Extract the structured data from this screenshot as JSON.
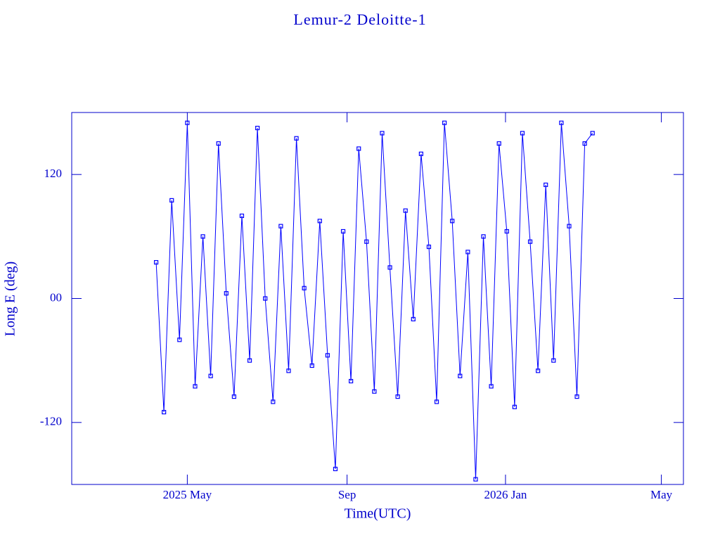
{
  "chart_data": {
    "type": "line",
    "title": "Lemur-2 Deloitte-1",
    "xlabel": "Time(UTC)",
    "ylabel": "Long E (deg)",
    "xlim": [
      "2025-02-01",
      "2026-05-18"
    ],
    "xticks": [
      {
        "value": "2025-05-01",
        "label": "2025 May"
      },
      {
        "value": "2025-09-01",
        "label": "Sep"
      },
      {
        "value": "2026-01-01",
        "label": "2026 Jan"
      },
      {
        "value": "2026-05-01",
        "label": "May"
      }
    ],
    "ylim": [
      -180,
      180
    ],
    "yticks": [
      {
        "value": -120,
        "label": "-120"
      },
      {
        "value": 0,
        "label": "00"
      },
      120
    ],
    "color": "#0000ff",
    "x": [
      "2025-04-07",
      "2025-04-13",
      "2025-04-19",
      "2025-04-25",
      "2025-05-01",
      "2025-05-07",
      "2025-05-13",
      "2025-05-19",
      "2025-05-25",
      "2025-05-31",
      "2025-06-06",
      "2025-06-12",
      "2025-06-18",
      "2025-06-24",
      "2025-06-30",
      "2025-07-06",
      "2025-07-12",
      "2025-07-18",
      "2025-07-24",
      "2025-07-30",
      "2025-08-05",
      "2025-08-11",
      "2025-08-17",
      "2025-08-23",
      "2025-08-29",
      "2025-09-04",
      "2025-09-10",
      "2025-09-16",
      "2025-09-22",
      "2025-09-28",
      "2025-10-04",
      "2025-10-10",
      "2025-10-16",
      "2025-10-22",
      "2025-10-28",
      "2025-11-03",
      "2025-11-09",
      "2025-11-15",
      "2025-11-21",
      "2025-11-27",
      "2025-12-03",
      "2025-12-09",
      "2025-12-15",
      "2025-12-21",
      "2025-12-27",
      "2026-01-02",
      "2026-01-08",
      "2026-01-14",
      "2026-01-20",
      "2026-01-26",
      "2026-02-01",
      "2026-02-07",
      "2026-02-13",
      "2026-02-19",
      "2026-02-25",
      "2026-03-03",
      "2026-03-09"
    ],
    "values": [
      35,
      -110,
      95,
      -40,
      170,
      -85,
      60,
      -75,
      150,
      5,
      -95,
      80,
      -60,
      165,
      0,
      -100,
      70,
      -70,
      155,
      10,
      -65,
      75,
      -55,
      -165,
      65,
      -80,
      145,
      55,
      -90,
      160,
      30,
      -95,
      85,
      -20,
      140,
      50,
      -100,
      170,
      75,
      -75,
      45,
      -175,
      60,
      -85,
      150,
      65,
      -105,
      160,
      55,
      -70,
      110,
      -60,
      170,
      70,
      -95,
      150,
      160
    ]
  }
}
